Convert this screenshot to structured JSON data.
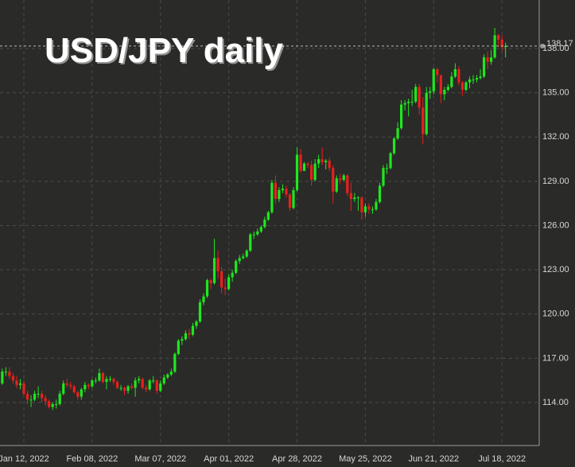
{
  "chart_data": {
    "type": "candlestick",
    "title": "USD/JPY daily",
    "x": [
      "2022-01-03",
      "2022-01-04",
      "2022-01-05",
      "2022-01-06",
      "2022-01-07",
      "2022-01-10",
      "2022-01-11",
      "2022-01-12",
      "2022-01-13",
      "2022-01-14",
      "2022-01-17",
      "2022-01-18",
      "2022-01-19",
      "2022-01-20",
      "2022-01-21",
      "2022-01-24",
      "2022-01-25",
      "2022-01-26",
      "2022-01-27",
      "2022-01-28",
      "2022-01-31",
      "2022-02-01",
      "2022-02-02",
      "2022-02-03",
      "2022-02-04",
      "2022-02-07",
      "2022-02-08",
      "2022-02-09",
      "2022-02-10",
      "2022-02-11",
      "2022-02-14",
      "2022-02-15",
      "2022-02-16",
      "2022-02-17",
      "2022-02-18",
      "2022-02-21",
      "2022-02-22",
      "2022-02-23",
      "2022-02-24",
      "2022-02-25",
      "2022-02-28",
      "2022-03-01",
      "2022-03-02",
      "2022-03-03",
      "2022-03-04",
      "2022-03-07",
      "2022-03-08",
      "2022-03-09",
      "2022-03-10",
      "2022-03-11",
      "2022-03-14",
      "2022-03-15",
      "2022-03-16",
      "2022-03-17",
      "2022-03-18",
      "2022-03-21",
      "2022-03-22",
      "2022-03-23",
      "2022-03-24",
      "2022-03-25",
      "2022-03-28",
      "2022-03-29",
      "2022-03-30",
      "2022-03-31",
      "2022-04-01",
      "2022-04-04",
      "2022-04-05",
      "2022-04-06",
      "2022-04-07",
      "2022-04-08",
      "2022-04-11",
      "2022-04-12",
      "2022-04-13",
      "2022-04-14",
      "2022-04-15",
      "2022-04-18",
      "2022-04-19",
      "2022-04-20",
      "2022-04-21",
      "2022-04-22",
      "2022-04-25",
      "2022-04-26",
      "2022-04-27",
      "2022-04-28",
      "2022-04-29",
      "2022-05-02",
      "2022-05-03",
      "2022-05-04",
      "2022-05-05",
      "2022-05-06",
      "2022-05-09",
      "2022-05-10",
      "2022-05-11",
      "2022-05-12",
      "2022-05-13",
      "2022-05-16",
      "2022-05-17",
      "2022-05-18",
      "2022-05-19",
      "2022-05-20",
      "2022-05-23",
      "2022-05-24",
      "2022-05-25",
      "2022-05-26",
      "2022-05-27",
      "2022-05-30",
      "2022-05-31",
      "2022-06-01",
      "2022-06-02",
      "2022-06-03",
      "2022-06-06",
      "2022-06-07",
      "2022-06-08",
      "2022-06-09",
      "2022-06-10",
      "2022-06-13",
      "2022-06-14",
      "2022-06-15",
      "2022-06-16",
      "2022-06-17",
      "2022-06-20",
      "2022-06-21",
      "2022-06-22",
      "2022-06-23",
      "2022-06-24",
      "2022-06-27",
      "2022-06-28",
      "2022-06-29",
      "2022-06-30",
      "2022-07-01",
      "2022-07-04",
      "2022-07-05",
      "2022-07-06",
      "2022-07-07",
      "2022-07-08",
      "2022-07-11",
      "2022-07-12",
      "2022-07-13",
      "2022-07-14",
      "2022-07-15",
      "2022-07-18",
      "2022-07-19"
    ],
    "open": [
      115.1,
      115.3,
      116.1,
      116.1,
      115.8,
      115.5,
      115.2,
      115.3,
      114.6,
      114.2,
      114.2,
      114.6,
      114.6,
      114.3,
      114.1,
      113.7,
      113.9,
      113.9,
      114.6,
      115.3,
      115.2,
      115.1,
      114.7,
      114.4,
      114.9,
      115.2,
      115.1,
      115.5,
      115.5,
      116.0,
      115.4,
      115.6,
      115.6,
      115.4,
      115.0,
      115.0,
      114.8,
      115.1,
      115.0,
      115.5,
      115.6,
      115.0,
      114.9,
      115.5,
      115.5,
      114.8,
      115.3,
      115.7,
      115.9,
      116.1,
      117.3,
      118.2,
      118.3,
      118.7,
      118.6,
      119.2,
      119.5,
      120.8,
      121.2,
      122.3,
      122.1,
      123.8,
      122.9,
      121.8,
      121.7,
      122.5,
      122.8,
      123.6,
      123.8,
      123.9,
      124.3,
      125.4,
      125.4,
      125.6,
      125.9,
      126.4,
      126.9,
      128.9,
      127.8,
      128.4,
      128.5,
      128.1,
      127.2,
      128.4,
      130.8,
      129.7,
      130.2,
      130.1,
      129.1,
      130.2,
      130.5,
      130.3,
      130.4,
      129.9,
      128.3,
      129.2,
      129.1,
      129.4,
      128.2,
      127.8,
      127.9,
      127.9,
      126.9,
      127.3,
      127.1,
      127.1,
      127.6,
      128.7,
      129.9,
      129.9,
      130.9,
      131.9,
      132.6,
      134.2,
      134.3,
      134.4,
      134.4,
      135.4,
      134.0,
      132.2,
      135.0,
      135.1,
      136.6,
      136.2,
      134.9,
      135.2,
      135.4,
      136.1,
      136.6,
      135.7,
      135.2,
      135.7,
      135.9,
      135.9,
      136.0,
      136.1,
      137.4,
      137.1,
      137.4,
      138.9,
      138.6,
      138.1
    ],
    "high": [
      115.6,
      116.3,
      116.4,
      116.4,
      116.0,
      115.8,
      115.6,
      115.5,
      114.8,
      114.5,
      114.8,
      115.1,
      114.8,
      114.5,
      114.2,
      114.0,
      114.2,
      114.8,
      115.5,
      115.6,
      115.4,
      115.2,
      114.8,
      115.0,
      115.4,
      115.3,
      115.6,
      115.7,
      116.3,
      116.1,
      115.8,
      115.8,
      115.7,
      115.5,
      115.2,
      115.1,
      115.2,
      115.3,
      115.7,
      115.8,
      115.7,
      115.2,
      115.6,
      115.8,
      115.6,
      115.5,
      115.9,
      116.0,
      116.3,
      117.4,
      118.3,
      118.5,
      118.9,
      119.0,
      119.4,
      119.6,
      121.0,
      121.4,
      122.4,
      122.4,
      125.1,
      124.3,
      123.2,
      122.4,
      122.7,
      123.0,
      123.7,
      124.0,
      124.1,
      124.4,
      125.5,
      125.6,
      125.8,
      126.0,
      126.6,
      127.0,
      129.1,
      129.4,
      128.6,
      128.8,
      128.7,
      128.2,
      128.6,
      131.3,
      131.2,
      130.3,
      130.3,
      130.4,
      130.5,
      130.8,
      131.3,
      130.5,
      130.6,
      130.1,
      129.4,
      129.5,
      129.5,
      129.5,
      128.9,
      128.2,
      128.0,
      128.0,
      127.5,
      127.5,
      127.3,
      127.8,
      128.9,
      130.1,
      130.2,
      131.0,
      132.0,
      133.0,
      134.5,
      134.5,
      134.6,
      135.2,
      135.6,
      135.6,
      134.7,
      135.4,
      135.4,
      136.7,
      136.7,
      136.2,
      135.4,
      135.6,
      136.4,
      137.0,
      136.8,
      135.8,
      135.8,
      136.1,
      136.2,
      136.2,
      136.6,
      137.6,
      137.8,
      137.9,
      139.4,
      139.0,
      138.9,
      138.4
    ],
    "low": [
      114.9,
      115.2,
      115.8,
      115.6,
      115.3,
      115.0,
      114.9,
      114.5,
      113.9,
      113.7,
      114.1,
      114.3,
      114.0,
      113.8,
      113.6,
      113.5,
      113.6,
      113.8,
      114.5,
      115.0,
      114.9,
      114.6,
      114.2,
      114.2,
      114.7,
      114.9,
      115.0,
      115.3,
      115.4,
      115.3,
      114.9,
      115.4,
      115.2,
      114.9,
      114.8,
      114.5,
      114.6,
      114.9,
      114.4,
      115.3,
      114.9,
      114.7,
      114.8,
      115.3,
      114.6,
      114.7,
      115.2,
      115.6,
      115.8,
      116.0,
      117.2,
      117.9,
      118.2,
      118.3,
      118.5,
      119.0,
      119.4,
      120.6,
      121.1,
      121.7,
      122.0,
      122.4,
      121.4,
      121.3,
      121.6,
      122.2,
      122.7,
      123.4,
      123.7,
      123.8,
      124.2,
      125.1,
      125.3,
      125.5,
      125.8,
      126.3,
      126.8,
      127.5,
      127.6,
      128.2,
      127.9,
      127.0,
      127.1,
      128.3,
      129.6,
      129.7,
      129.9,
      128.7,
      129.0,
      129.9,
      130.1,
      129.8,
      129.7,
      127.5,
      128.2,
      128.8,
      129.0,
      128.0,
      127.0,
      127.6,
      127.0,
      126.4,
      126.6,
      126.8,
      126.8,
      127.0,
      127.5,
      128.6,
      129.5,
      129.8,
      130.8,
      131.8,
      132.5,
      133.8,
      133.4,
      134.1,
      134.3,
      133.5,
      131.5,
      132.1,
      134.6,
      134.9,
      135.7,
      134.3,
      134.5,
      135.1,
      135.3,
      136.0,
      135.5,
      134.8,
      135.1,
      135.3,
      135.6,
      135.7,
      135.9,
      136.0,
      136.6,
      136.9,
      137.3,
      138.1,
      137.8,
      137.4
    ],
    "close": [
      115.3,
      116.1,
      116.1,
      115.8,
      115.5,
      115.2,
      115.3,
      114.6,
      114.2,
      114.2,
      114.6,
      114.6,
      114.3,
      114.1,
      113.7,
      113.9,
      113.9,
      114.6,
      115.3,
      115.2,
      115.1,
      114.7,
      114.4,
      114.9,
      115.2,
      115.1,
      115.5,
      115.5,
      116.0,
      115.4,
      115.6,
      115.6,
      115.4,
      115.0,
      115.0,
      114.8,
      115.1,
      115.0,
      115.5,
      115.6,
      115.0,
      114.9,
      115.5,
      115.5,
      114.8,
      115.3,
      115.7,
      115.9,
      116.1,
      117.3,
      118.2,
      118.3,
      118.7,
      118.6,
      119.2,
      119.5,
      120.8,
      121.2,
      122.3,
      122.1,
      123.8,
      122.9,
      121.8,
      121.7,
      122.5,
      122.8,
      123.6,
      123.8,
      123.9,
      124.3,
      125.4,
      125.4,
      125.6,
      125.9,
      126.4,
      126.9,
      128.9,
      127.8,
      128.4,
      128.5,
      128.1,
      127.2,
      128.4,
      130.8,
      129.7,
      130.2,
      130.1,
      129.1,
      130.2,
      130.5,
      130.3,
      130.4,
      129.9,
      128.3,
      129.2,
      129.1,
      129.4,
      128.2,
      127.8,
      127.9,
      127.9,
      126.9,
      127.3,
      127.1,
      127.1,
      127.6,
      128.7,
      129.9,
      129.9,
      130.9,
      131.9,
      132.6,
      134.2,
      134.3,
      134.4,
      134.4,
      135.4,
      134.0,
      132.2,
      135.0,
      135.1,
      136.6,
      136.2,
      134.9,
      135.2,
      135.4,
      136.1,
      136.6,
      135.7,
      135.2,
      135.7,
      135.9,
      135.9,
      136.0,
      136.1,
      137.4,
      137.1,
      137.4,
      138.9,
      138.6,
      138.1,
      138.17
    ],
    "up_color": "#1ee81e",
    "down_color": "#e8201e",
    "ylim": [
      111.09,
      141.29
    ],
    "yticks": [
      {
        "value": 114,
        "label": "114.00"
      },
      {
        "value": 117,
        "label": "117.00"
      },
      {
        "value": 120,
        "label": "120.00"
      },
      {
        "value": 123,
        "label": "123.00"
      },
      {
        "value": 126,
        "label": "126.00"
      },
      {
        "value": 129,
        "label": "129.00"
      },
      {
        "value": 132,
        "label": "132.00"
      },
      {
        "value": 135,
        "label": "135.00"
      },
      {
        "value": 138,
        "label": "138.00"
      }
    ],
    "xticks": [
      {
        "value": "2022-01-12",
        "label": "Jan 12, 2022"
      },
      {
        "value": "2022-02-08",
        "label": "Feb 08, 2022"
      },
      {
        "value": "2022-03-07",
        "label": "Mar 07, 2022"
      },
      {
        "value": "2022-04-01",
        "label": "Apr 01, 2022"
      },
      {
        "value": "2022-04-28",
        "label": "Apr 28, 2022"
      },
      {
        "value": "2022-05-25",
        "label": "May 25, 2022"
      },
      {
        "value": "2022-06-21",
        "label": "Jun 21, 2022"
      },
      {
        "value": "2022-07-18",
        "label": "Jul 18, 2022"
      }
    ],
    "last_price": 138.17,
    "grid": true
  }
}
